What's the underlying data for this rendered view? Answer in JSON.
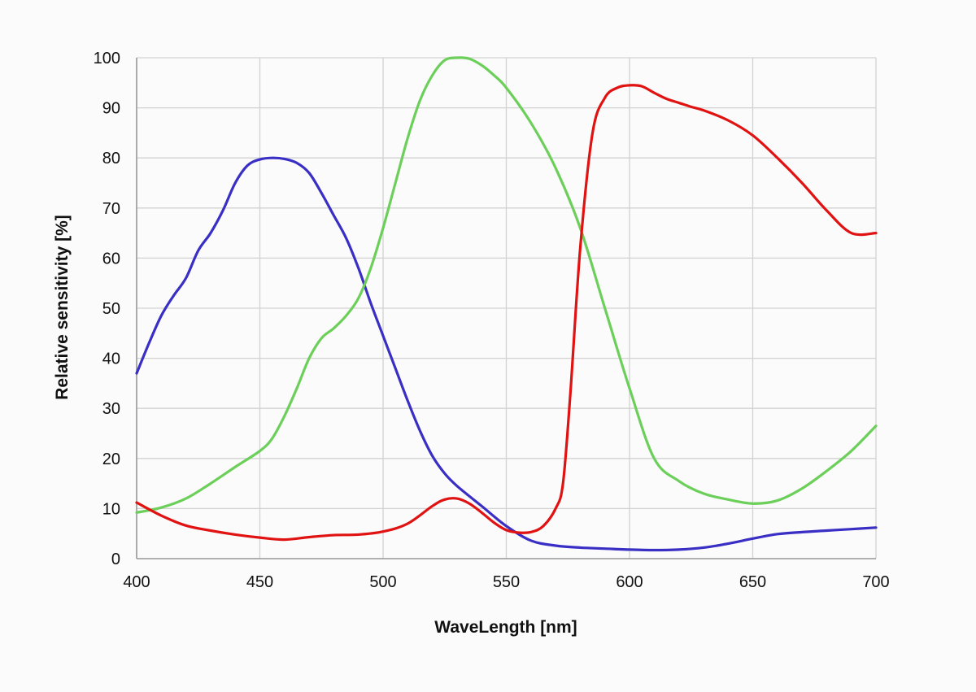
{
  "chart_data": {
    "type": "line",
    "title": "",
    "xlabel": "WaveLength [nm]",
    "ylabel": "Relative sensitivity [%]",
    "xlim": [
      400,
      700
    ],
    "ylim": [
      0,
      100
    ],
    "grid": true,
    "legend": "none",
    "x_ticks": [
      400,
      450,
      500,
      550,
      600,
      650,
      700
    ],
    "y_ticks": [
      0,
      10,
      20,
      30,
      40,
      50,
      60,
      70,
      80,
      90,
      100
    ],
    "series": [
      {
        "name": "Blue",
        "color": "#3a2fc4",
        "x": [
          400,
          405,
          410,
          415,
          420,
          425,
          430,
          435,
          440,
          445,
          450,
          455,
          460,
          465,
          470,
          475,
          480,
          485,
          490,
          495,
          500,
          505,
          510,
          515,
          520,
          525,
          530,
          540,
          550,
          560,
          570,
          580,
          590,
          600,
          610,
          620,
          630,
          640,
          650,
          660,
          670,
          680,
          690,
          700
        ],
        "y": [
          37,
          43,
          48.5,
          52.5,
          56,
          61.5,
          65,
          69.5,
          75,
          78.5,
          79.7,
          80,
          79.8,
          79,
          77,
          73,
          68.5,
          64,
          58,
          51,
          44.5,
          38,
          31.5,
          25.5,
          20.5,
          17,
          14.5,
          10.5,
          6.5,
          3.6,
          2.6,
          2.2,
          2,
          1.8,
          1.7,
          1.8,
          2.2,
          3,
          4,
          4.9,
          5.3,
          5.6,
          5.9,
          6.2
        ]
      },
      {
        "name": "Green",
        "color": "#6ccf5a",
        "x": [
          400,
          410,
          420,
          430,
          440,
          450,
          455,
          460,
          465,
          470,
          475,
          480,
          485,
          490,
          495,
          500,
          505,
          510,
          515,
          520,
          525,
          530,
          535,
          540,
          545,
          550,
          560,
          570,
          580,
          590,
          600,
          610,
          620,
          630,
          640,
          650,
          660,
          670,
          680,
          690,
          700
        ],
        "y": [
          9.2,
          10.2,
          12,
          15,
          18.3,
          21.5,
          24,
          28.5,
          34,
          40,
          44,
          46,
          48.5,
          52,
          58,
          66,
          75,
          84,
          91.5,
          96.5,
          99.5,
          100,
          99.8,
          98.5,
          96.5,
          94,
          87,
          78,
          66,
          50,
          34,
          20,
          15.5,
          13,
          11.8,
          11,
          11.6,
          14,
          17.5,
          21.5,
          26.5
        ]
      },
      {
        "name": "Red",
        "color": "#e01212",
        "x": [
          400,
          410,
          420,
          430,
          440,
          450,
          460,
          470,
          480,
          490,
          500,
          510,
          520,
          525,
          530,
          535,
          540,
          545,
          550,
          555,
          560,
          565,
          570,
          573,
          576,
          580,
          585,
          590,
          595,
          600,
          605,
          610,
          615,
          620,
          625,
          630,
          640,
          650,
          660,
          670,
          680,
          690,
          700
        ],
        "y": [
          11.2,
          8.6,
          6.6,
          5.6,
          4.8,
          4.2,
          3.8,
          4.3,
          4.7,
          4.8,
          5.4,
          7,
          10.5,
          11.8,
          12,
          11,
          9.2,
          7.2,
          5.7,
          5.2,
          5.3,
          6.5,
          10,
          15,
          33,
          62,
          85,
          92,
          94,
          94.5,
          94.3,
          93,
          91.8,
          91,
          90.2,
          89.5,
          87.5,
          84.5,
          80,
          75,
          69.5,
          65,
          65
        ]
      }
    ]
  }
}
